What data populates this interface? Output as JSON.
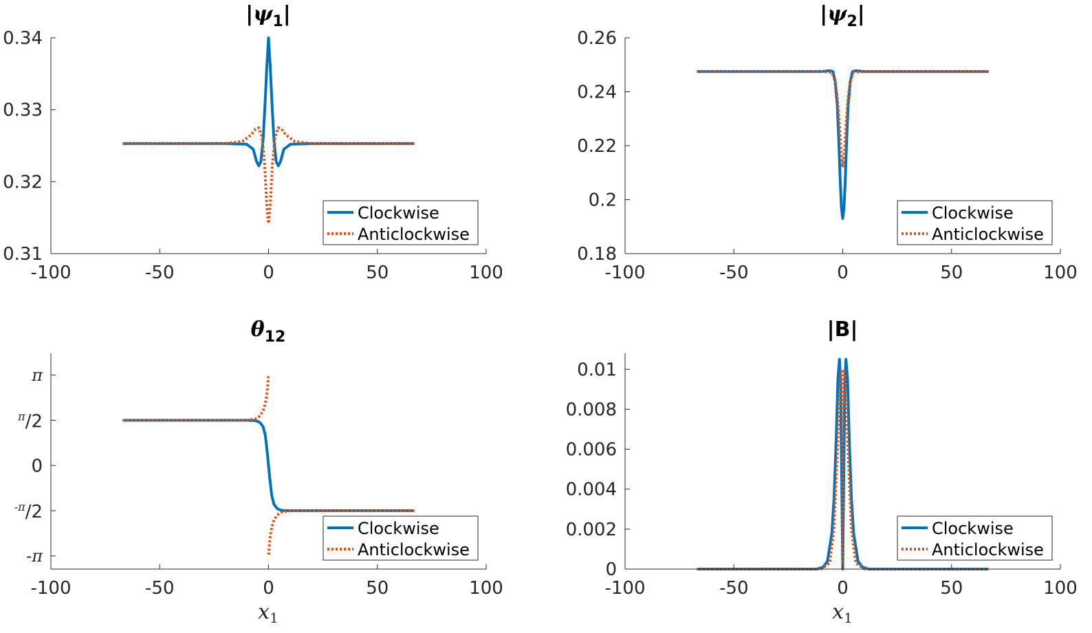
{
  "chart_data": [
    {
      "type": "line",
      "title": "|ψ1|",
      "title_parts": {
        "left_bar": "|",
        "symbol": "ψ",
        "subscript": "1",
        "right_bar": "|"
      },
      "xlabel": "",
      "ylabel": "",
      "xlim": [
        -100,
        100
      ],
      "ylim": [
        0.31,
        0.34
      ],
      "xticks": [
        -100,
        -50,
        0,
        50,
        100
      ],
      "xtick_labels": [
        "-100",
        "-50",
        "0",
        "50",
        "100"
      ],
      "yticks": [
        0.31,
        0.32,
        0.33,
        0.34
      ],
      "ytick_labels": [
        "0.31",
        "0.32",
        "0.33",
        "0.34"
      ],
      "legend_position": "bottom-right",
      "series": [
        {
          "name": "Clockwise",
          "style": "solid",
          "color": "#0072BD",
          "x": [
            -67,
            -20,
            -10,
            -7,
            -5.5,
            -4.5,
            -3.5,
            -2.5,
            -1.5,
            -0.8,
            0,
            0.8,
            1.5,
            2.5,
            3.5,
            4.5,
            5.5,
            7,
            10,
            20,
            67
          ],
          "y": [
            0.3253,
            0.3253,
            0.3252,
            0.3245,
            0.3228,
            0.3222,
            0.3228,
            0.3258,
            0.3315,
            0.336,
            0.34,
            0.336,
            0.3315,
            0.3258,
            0.3228,
            0.3222,
            0.3228,
            0.3245,
            0.3252,
            0.3253,
            0.3253
          ]
        },
        {
          "name": "Anticlockwise",
          "style": "dotted",
          "color": "#D95319",
          "x": [
            -67,
            -20,
            -12,
            -8,
            -6,
            -4.5,
            -3,
            -1.8,
            -1,
            -0.5,
            0,
            0.5,
            1,
            1.8,
            3,
            4.5,
            6,
            8,
            12,
            20,
            67
          ],
          "y": [
            0.3253,
            0.3253,
            0.3256,
            0.3265,
            0.3273,
            0.3275,
            0.3262,
            0.3225,
            0.318,
            0.3155,
            0.3142,
            0.3155,
            0.318,
            0.3225,
            0.3262,
            0.3275,
            0.3273,
            0.3265,
            0.3256,
            0.3253,
            0.3253
          ]
        }
      ]
    },
    {
      "type": "line",
      "title": "|ψ2|",
      "title_parts": {
        "left_bar": "|",
        "symbol": "ψ",
        "subscript": "2",
        "right_bar": "|"
      },
      "xlabel": "",
      "ylabel": "",
      "xlim": [
        -100,
        100
      ],
      "ylim": [
        0.18,
        0.26
      ],
      "xticks": [
        -100,
        -50,
        0,
        50,
        100
      ],
      "xtick_labels": [
        "-100",
        "-50",
        "0",
        "50",
        "100"
      ],
      "yticks": [
        0.18,
        0.2,
        0.22,
        0.24,
        0.26
      ],
      "ytick_labels": [
        "0.18",
        "0.2",
        "0.22",
        "0.24",
        "0.26"
      ],
      "legend_position": "bottom-right",
      "series": [
        {
          "name": "Clockwise",
          "style": "solid",
          "color": "#0072BD",
          "x": [
            -67,
            -10,
            -6,
            -4.5,
            -3.5,
            -2.5,
            -1.8,
            -1.2,
            -0.6,
            0,
            0.6,
            1.2,
            1.8,
            2.5,
            3.5,
            4.5,
            6,
            10,
            67
          ],
          "y": [
            0.2475,
            0.2475,
            0.2478,
            0.2475,
            0.244,
            0.235,
            0.222,
            0.208,
            0.197,
            0.193,
            0.197,
            0.208,
            0.222,
            0.235,
            0.244,
            0.2475,
            0.2478,
            0.2475,
            0.2475
          ]
        },
        {
          "name": "Anticlockwise",
          "style": "dotted",
          "color": "#D95319",
          "x": [
            -67,
            -10,
            -5,
            -3.5,
            -2.5,
            -1.5,
            -0.8,
            0,
            0.8,
            1.5,
            2.5,
            3.5,
            5,
            10,
            67
          ],
          "y": [
            0.2475,
            0.2475,
            0.2472,
            0.244,
            0.238,
            0.228,
            0.218,
            0.212,
            0.218,
            0.228,
            0.238,
            0.244,
            0.2472,
            0.2475,
            0.2475
          ]
        }
      ]
    },
    {
      "type": "line",
      "title": "θ12",
      "title_parts": {
        "left_bar": "",
        "symbol": "θ",
        "subscript": "12",
        "right_bar": ""
      },
      "xlabel": "x1",
      "xlabel_parts": {
        "symbol": "x",
        "subscript": "1"
      },
      "ylabel": "",
      "xlim": [
        -100,
        100
      ],
      "ylim": [
        -3.6,
        3.9
      ],
      "xticks": [
        -100,
        -50,
        0,
        50,
        100
      ],
      "xtick_labels": [
        "-100",
        "-50",
        "0",
        "50",
        "100"
      ],
      "yticks": [
        -3.14159,
        -1.5708,
        0,
        1.5708,
        3.14159
      ],
      "ytick_labels": [
        "-π",
        "-π/2",
        "0",
        "π/2",
        "π"
      ],
      "legend_position": "bottom-right",
      "series": [
        {
          "name": "Clockwise",
          "style": "solid",
          "color": "#0072BD",
          "x": [
            -67,
            -10,
            -6,
            -4,
            -2.5,
            -1.5,
            -0.5,
            0,
            0.5,
            1.5,
            2.5,
            4,
            6,
            8,
            10,
            67
          ],
          "y": [
            1.5708,
            1.5708,
            1.56,
            1.5,
            1.35,
            1.05,
            0.4,
            0,
            -0.4,
            -1.05,
            -1.35,
            -1.5,
            -1.56,
            -1.5708,
            -1.5708,
            -1.5708
          ]
        },
        {
          "name": "Anticlockwise",
          "style": "dotted",
          "color": "#D95319",
          "x": [
            -67,
            -10,
            -6,
            -4,
            -2.5,
            -1.5,
            -0.8,
            -0.3,
            -0.05
          ],
          "y": [
            1.5708,
            1.5708,
            1.62,
            1.72,
            1.9,
            2.15,
            2.45,
            2.85,
            3.1
          ]
        },
        {
          "name": "",
          "style": "dotted",
          "color": "#D95319",
          "x": [
            0.05,
            0.3,
            0.8,
            1.5,
            2.5,
            4,
            6,
            10,
            67
          ],
          "y": [
            -3.1,
            -2.85,
            -2.45,
            -2.15,
            -1.9,
            -1.72,
            -1.62,
            -1.5708,
            -1.5708
          ]
        }
      ]
    },
    {
      "type": "line",
      "title": "|B|",
      "title_parts": {
        "left_bar": "|",
        "symbol": "B",
        "subscript": "",
        "right_bar": "|"
      },
      "xlabel": "x1",
      "xlabel_parts": {
        "symbol": "x",
        "subscript": "1"
      },
      "ylabel": "",
      "xlim": [
        -100,
        100
      ],
      "ylim": [
        0,
        0.0108
      ],
      "xticks": [
        -100,
        -50,
        0,
        50,
        100
      ],
      "xtick_labels": [
        "-100",
        "-50",
        "0",
        "50",
        "100"
      ],
      "yticks": [
        0,
        0.002,
        0.004,
        0.006,
        0.008,
        0.01
      ],
      "ytick_labels": [
        "0",
        "0.002",
        "0.004",
        "0.006",
        "0.008",
        "0.01"
      ],
      "legend_position": "bottom-right",
      "series": [
        {
          "name": "Clockwise",
          "style": "solid",
          "color": "#0072BD",
          "x": [
            -67,
            -12,
            -9,
            -7,
            -5,
            -4,
            -3,
            -2.2,
            -1.5,
            -1,
            -0.5,
            0,
            0.5,
            1,
            1.5,
            2.2,
            3,
            4,
            5,
            7,
            9,
            12,
            67
          ],
          "y": [
            0,
            0,
            0.0001,
            0.0004,
            0.0018,
            0.0035,
            0.0065,
            0.0095,
            0.0105,
            0.0095,
            0.005,
            0,
            0.005,
            0.0095,
            0.0105,
            0.0095,
            0.0065,
            0.0035,
            0.0018,
            0.0004,
            0.0001,
            0,
            0
          ]
        },
        {
          "name": "Anticlockwise",
          "style": "dotted",
          "color": "#D95319",
          "x": [
            -67,
            -10,
            -6,
            -4,
            -2.5,
            -1.5,
            -1,
            -0.5,
            -0.2,
            0,
            0.2,
            0.5,
            1,
            1.5,
            2.5,
            4,
            6,
            10,
            67
          ],
          "y": [
            0,
            0,
            0.0003,
            0.002,
            0.0058,
            0.0088,
            0.0098,
            0.01,
            0.007,
            0,
            0.007,
            0.01,
            0.0098,
            0.0088,
            0.0058,
            0.002,
            0.0003,
            0,
            0
          ]
        }
      ]
    }
  ]
}
